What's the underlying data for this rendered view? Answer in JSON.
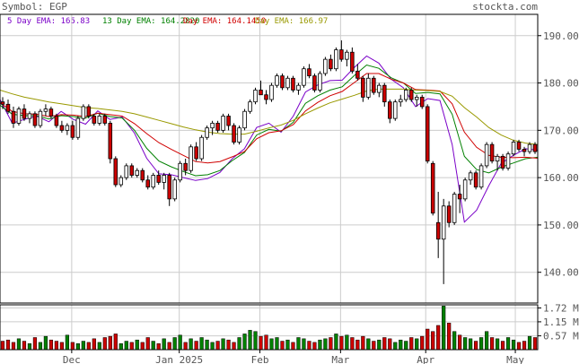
{
  "header": {
    "symbol_label": "Symbol: EGP",
    "site_name": "stockta.com"
  },
  "legend": [
    {
      "label": "5 Day EMA: 165.83",
      "color": "#7a00c8"
    },
    {
      "label": "13 Day EMA: 164.2820",
      "color": "#008000"
    },
    {
      "label": "Day EMA: 164.1450",
      "color": "#d00000"
    },
    {
      "label": "Day EMA: 166.97",
      "color": "#999900"
    }
  ],
  "colors": {
    "up": "#ffffff",
    "down": "#cc0000",
    "vol_up": "#008000",
    "vol_down": "#cc0000",
    "grid": "#cccccc",
    "frame": "#000000"
  },
  "chart_data": [
    {
      "type": "candlestick",
      "title": "",
      "x_ticks": [
        "Dec",
        "Jan 2025",
        "Feb",
        "Mar",
        "Apr",
        "May"
      ],
      "y_ticks": [
        "140.00",
        "150.00",
        "160.00",
        "170.00",
        "180.00",
        "190.00"
      ],
      "ylim": [
        133.5,
        194.5
      ],
      "grid": true,
      "ohlc": [
        [
          176.0,
          177.0,
          174.5,
          175.5
        ],
        [
          175.5,
          176.5,
          173.5,
          174.0
        ],
        [
          174.0,
          175.0,
          170.5,
          171.5
        ],
        [
          171.5,
          175.0,
          171.0,
          174.5
        ],
        [
          174.5,
          175.5,
          172.0,
          172.5
        ],
        [
          172.5,
          174.0,
          171.5,
          173.5
        ],
        [
          173.5,
          174.0,
          170.5,
          171.0
        ],
        [
          171.0,
          174.5,
          170.5,
          174.0
        ],
        [
          174.0,
          175.5,
          173.0,
          174.5
        ],
        [
          174.5,
          175.0,
          172.5,
          173.0
        ],
        [
          173.0,
          173.5,
          170.5,
          171.0
        ],
        [
          171.0,
          172.0,
          169.5,
          170.0
        ],
        [
          170.0,
          171.5,
          169.0,
          171.0
        ],
        [
          171.0,
          172.0,
          168.0,
          168.5
        ],
        [
          168.5,
          173.0,
          168.0,
          172.5
        ],
        [
          172.5,
          175.5,
          172.0,
          175.0
        ],
        [
          175.0,
          175.5,
          172.5,
          173.0
        ],
        [
          173.0,
          173.5,
          171.0,
          171.5
        ],
        [
          171.5,
          173.5,
          171.0,
          173.0
        ],
        [
          173.0,
          173.5,
          171.0,
          171.5
        ],
        [
          171.5,
          172.0,
          163.0,
          164.0
        ],
        [
          164.0,
          164.5,
          158.0,
          158.5
        ],
        [
          158.5,
          160.5,
          158.0,
          160.0
        ],
        [
          160.0,
          163.0,
          159.5,
          162.5
        ],
        [
          162.5,
          163.0,
          160.0,
          160.5
        ],
        [
          160.5,
          162.0,
          160.0,
          161.5
        ],
        [
          161.5,
          162.0,
          159.0,
          159.5
        ],
        [
          159.5,
          160.5,
          157.5,
          158.0
        ],
        [
          158.0,
          161.0,
          157.5,
          160.5
        ],
        [
          160.5,
          161.5,
          158.5,
          159.0
        ],
        [
          159.0,
          161.0,
          157.5,
          160.5
        ],
        [
          160.5,
          161.0,
          154.0,
          155.5
        ],
        [
          155.5,
          160.0,
          155.0,
          159.5
        ],
        [
          159.5,
          163.5,
          159.0,
          163.0
        ],
        [
          163.0,
          164.0,
          160.5,
          161.5
        ],
        [
          161.5,
          167.0,
          161.0,
          166.5
        ],
        [
          166.5,
          167.5,
          163.5,
          164.0
        ],
        [
          164.0,
          169.0,
          163.5,
          168.5
        ],
        [
          168.5,
          171.0,
          168.0,
          170.5
        ],
        [
          170.5,
          172.0,
          169.0,
          171.5
        ],
        [
          171.5,
          172.0,
          169.5,
          170.0
        ],
        [
          170.0,
          173.5,
          169.5,
          173.0
        ],
        [
          173.0,
          173.5,
          170.0,
          171.0
        ],
        [
          171.0,
          171.5,
          167.0,
          167.5
        ],
        [
          167.5,
          171.0,
          167.0,
          170.5
        ],
        [
          170.5,
          174.5,
          170.0,
          174.0
        ],
        [
          174.0,
          176.5,
          173.5,
          176.0
        ],
        [
          176.0,
          179.0,
          175.5,
          178.5
        ],
        [
          178.5,
          180.5,
          177.5,
          177.5
        ],
        [
          177.5,
          178.5,
          175.5,
          176.5
        ],
        [
          176.5,
          180.0,
          176.0,
          179.5
        ],
        [
          179.5,
          182.0,
          179.0,
          181.5
        ],
        [
          181.5,
          182.0,
          178.5,
          179.0
        ],
        [
          179.0,
          181.5,
          178.5,
          181.0
        ],
        [
          181.0,
          181.5,
          178.0,
          178.5
        ],
        [
          178.5,
          180.0,
          177.5,
          179.5
        ],
        [
          179.5,
          183.5,
          179.0,
          183.0
        ],
        [
          183.0,
          184.0,
          181.0,
          181.5
        ],
        [
          181.5,
          182.0,
          178.0,
          178.5
        ],
        [
          178.5,
          182.5,
          178.0,
          182.0
        ],
        [
          182.0,
          185.5,
          181.5,
          185.0
        ],
        [
          185.0,
          186.0,
          182.5,
          183.0
        ],
        [
          183.0,
          187.5,
          182.5,
          187.0
        ],
        [
          187.0,
          189.0,
          184.5,
          185.0
        ],
        [
          185.0,
          187.0,
          183.5,
          186.5
        ],
        [
          186.5,
          187.5,
          182.0,
          182.5
        ],
        [
          182.5,
          184.0,
          180.5,
          181.0
        ],
        [
          181.0,
          181.5,
          176.0,
          177.0
        ],
        [
          177.0,
          182.0,
          176.5,
          181.0
        ],
        [
          181.0,
          181.5,
          177.5,
          178.0
        ],
        [
          178.0,
          180.0,
          177.0,
          179.5
        ],
        [
          179.5,
          180.0,
          175.0,
          176.0
        ],
        [
          176.0,
          176.5,
          171.5,
          172.5
        ],
        [
          172.5,
          176.5,
          172.0,
          176.0
        ],
        [
          176.0,
          177.5,
          175.0,
          176.5
        ],
        [
          176.5,
          179.0,
          176.0,
          178.5
        ],
        [
          178.5,
          179.0,
          176.0,
          176.5
        ],
        [
          176.5,
          177.5,
          175.0,
          177.0
        ],
        [
          177.0,
          177.5,
          174.5,
          175.0
        ],
        [
          175.0,
          175.5,
          163.0,
          163.5
        ],
        [
          163.0,
          163.5,
          152.0,
          152.5
        ],
        [
          150.5,
          157.0,
          143.0,
          147.0
        ],
        [
          147.0,
          155.5,
          137.5,
          154.0
        ],
        [
          154.0,
          155.0,
          149.5,
          150.5
        ],
        [
          150.5,
          157.0,
          150.0,
          156.5
        ],
        [
          156.5,
          158.5,
          152.5,
          155.5
        ],
        [
          155.5,
          160.0,
          155.0,
          159.5
        ],
        [
          159.5,
          161.5,
          158.5,
          161.0
        ],
        [
          161.0,
          161.5,
          157.5,
          158.0
        ],
        [
          158.0,
          163.0,
          157.5,
          162.5
        ],
        [
          162.5,
          167.5,
          162.0,
          167.0
        ],
        [
          167.0,
          167.5,
          163.0,
          163.5
        ],
        [
          163.5,
          165.0,
          161.5,
          164.5
        ],
        [
          164.5,
          165.0,
          161.5,
          162.0
        ],
        [
          162.0,
          165.5,
          161.5,
          165.0
        ],
        [
          165.0,
          168.0,
          164.5,
          167.5
        ],
        [
          167.5,
          168.0,
          165.5,
          166.0
        ],
        [
          166.0,
          166.5,
          164.5,
          165.5
        ],
        [
          165.5,
          167.5,
          165.0,
          167.0
        ],
        [
          167.0,
          167.5,
          165.0,
          165.5
        ]
      ],
      "ema": [
        {
          "name": "5 Day EMA",
          "color": "#7a00c8",
          "values": [
            176.5,
            171.5,
            172.3,
            173.0,
            171.8,
            174.0,
            172.3,
            171.3,
            174.1,
            172.3,
            172.8,
            169.4,
            164.1,
            160.8,
            160.6,
            160.0,
            159.4,
            159.8,
            161.1,
            164.0,
            166.1,
            170.6,
            171.5,
            169.6,
            173.0,
            178.1,
            179.6,
            180.5,
            180.6,
            183.3,
            185.7,
            184.2,
            180.8,
            179.0,
            175.0,
            176.7,
            176.3,
            167.0,
            150.6,
            153.1,
            158.3,
            163.0,
            164.7,
            166.1,
            165.8
          ]
        },
        {
          "name": "13 Day EMA",
          "color": "#008000",
          "values": [
            175.3,
            173.4,
            173.1,
            173.1,
            172.4,
            173.1,
            172.9,
            172.6,
            173.6,
            172.9,
            172.6,
            170.0,
            166.2,
            163.5,
            162.3,
            161.3,
            160.4,
            160.6,
            161.5,
            163.6,
            165.3,
            169.0,
            170.2,
            169.8,
            171.7,
            175.7,
            177.3,
            178.5,
            179.2,
            181.6,
            183.8,
            183.1,
            181.1,
            180.0,
            177.8,
            178.0,
            177.7,
            173.4,
            164.5,
            161.7,
            161.0,
            162.2,
            163.1,
            164.0,
            164.3
          ]
        },
        {
          "name": "Day EMA",
          "color": "#d00000",
          "values": [
            175.8,
            174.0,
            173.5,
            173.4,
            172.9,
            173.3,
            173.2,
            172.9,
            173.6,
            173.3,
            173.0,
            171.4,
            169.3,
            167.4,
            166.0,
            164.7,
            163.4,
            163.1,
            163.4,
            164.4,
            165.5,
            168.2,
            169.5,
            169.9,
            171.2,
            174.1,
            175.9,
            177.3,
            178.2,
            180.1,
            182.0,
            182.0,
            180.8,
            180.0,
            178.6,
            178.5,
            178.3,
            175.6,
            169.6,
            166.4,
            164.7,
            164.3,
            164.2,
            164.3,
            164.1
          ]
        },
        {
          "name": "Day EMA",
          "color": "#999900",
          "values": [
            178.5,
            177.7,
            177.0,
            176.5,
            176.0,
            175.6,
            175.2,
            174.8,
            174.6,
            174.3,
            174.0,
            173.5,
            172.8,
            172.1,
            171.4,
            170.7,
            170.1,
            169.6,
            169.3,
            169.2,
            169.2,
            169.8,
            170.5,
            171.1,
            172.1,
            173.5,
            174.7,
            175.8,
            176.6,
            177.4,
            178.3,
            178.7,
            178.7,
            178.7,
            178.5,
            178.4,
            178.2,
            177.2,
            174.8,
            172.8,
            170.6,
            169.0,
            167.9,
            167.3,
            167.0
          ]
        }
      ]
    },
    {
      "type": "bar",
      "title": "",
      "y_ticks": [
        "0.57 M",
        "1.15 M",
        "1.72 M"
      ],
      "ylim": [
        0,
        1.85
      ],
      "volume": [
        0.35,
        0.4,
        0.3,
        0.45,
        0.35,
        0.25,
        0.5,
        0.3,
        0.55,
        0.4,
        0.35,
        0.3,
        0.6,
        0.3,
        0.25,
        0.35,
        0.3,
        0.45,
        0.3,
        0.5,
        0.55,
        0.65,
        0.25,
        0.35,
        0.3,
        0.4,
        0.3,
        0.5,
        0.35,
        0.25,
        0.45,
        0.3,
        0.5,
        0.6,
        0.3,
        0.45,
        0.35,
        0.5,
        0.4,
        0.3,
        0.35,
        0.45,
        0.4,
        0.3,
        0.5,
        0.65,
        0.8,
        0.75,
        0.55,
        0.6,
        0.45,
        0.5,
        0.35,
        0.4,
        0.3,
        0.5,
        0.45,
        0.35,
        0.3,
        0.4,
        0.45,
        0.5,
        0.65,
        0.55,
        0.6,
        0.5,
        0.4,
        0.55,
        0.45,
        0.35,
        0.4,
        0.5,
        0.45,
        0.3,
        0.4,
        0.35,
        0.5,
        0.45,
        0.55,
        0.85,
        0.75,
        1.0,
        1.8,
        1.1,
        0.75,
        0.6,
        0.5,
        0.45,
        0.35,
        0.5,
        0.75,
        0.5,
        0.45,
        0.35,
        0.5,
        0.4,
        0.3,
        0.35,
        0.55,
        0.5
      ]
    }
  ]
}
